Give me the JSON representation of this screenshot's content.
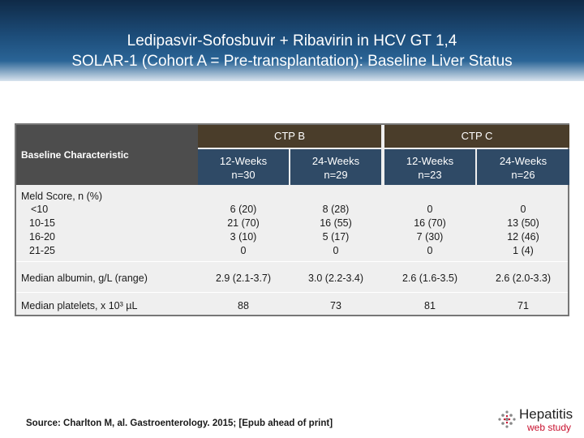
{
  "title": {
    "line1": "Ledipasvir-Sofosbuvir + Ribavirin in HCV GT 1,4",
    "line2": "SOLAR-1 (Cohort A = Pre-transplantation): Baseline Liver Status"
  },
  "table": {
    "groups": [
      "CTP B",
      "CTP C"
    ],
    "row_header": "Baseline Characteristic",
    "columns": [
      {
        "weeks": "12-Weeks",
        "n": "n=30"
      },
      {
        "weeks": "24-Weeks",
        "n": "n=29"
      },
      {
        "weeks": "12-Weeks",
        "n": "n=23"
      },
      {
        "weeks": "24-Weeks",
        "n": "n=26"
      }
    ],
    "meld": {
      "label": "Meld Score, n (%)",
      "sub_labels": [
        "<10",
        "10-15",
        "16-20",
        "21-25"
      ],
      "values": [
        [
          "6 (20)",
          "21 (70)",
          "3 (10)",
          "0"
        ],
        [
          "8 (28)",
          "16 (55)",
          "5 (17)",
          "0"
        ],
        [
          "0",
          "16 (70)",
          "7 (30)",
          "0"
        ],
        [
          "0",
          "13 (50)",
          "12 (46)",
          "1 (4)"
        ]
      ]
    },
    "albumin": {
      "label": "Median albumin, g/L (range)",
      "values": [
        "2.9 (2.1-3.7)",
        "3.0 (2.2-3.4)",
        "2.6 (1.6-3.5)",
        "2.6 (2.0-3.3)"
      ]
    },
    "platelets": {
      "label": "Median platelets, x 10³ µL",
      "values": [
        "88",
        "73",
        "81",
        "71"
      ]
    }
  },
  "source": "Source: Charlton M, al. Gastroenterology. 2015; [Epub ahead of print]",
  "logo": {
    "name": "Hepatitis",
    "sub": "web study",
    "accent": "#c8102e"
  },
  "colors": {
    "title_bg": "#1d4d7a",
    "group_header": "#4a3d2a",
    "col_header": "#2f4a66",
    "row_header": "#4d4d4d",
    "table_bg": "#efefef"
  }
}
